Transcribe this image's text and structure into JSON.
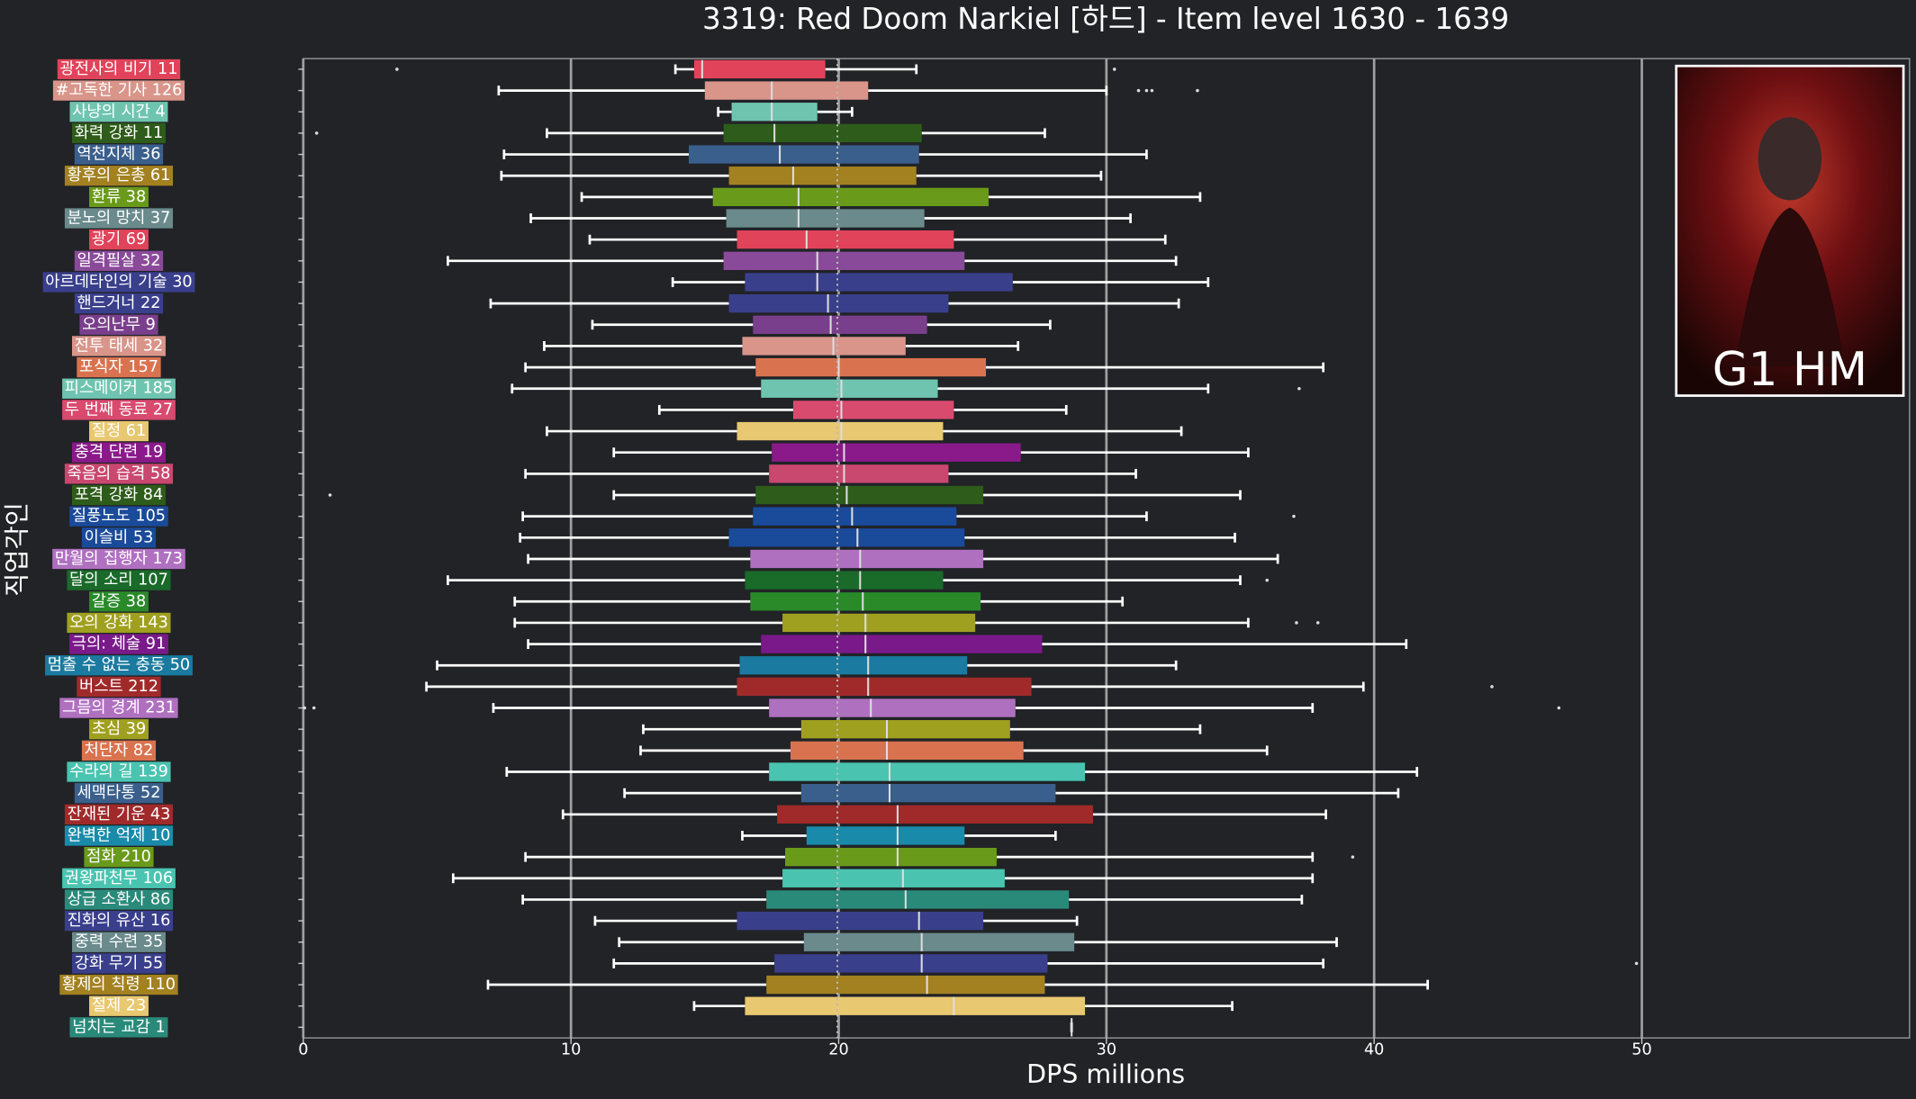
{
  "chart_data": {
    "type": "boxplot",
    "orientation": "horizontal",
    "title": "3319: Red Doom Narkiel [하드] - Item level 1630 - 1639",
    "x_label": "DPS millions",
    "y_label": "직업각인",
    "badge": "G1 HM",
    "xlim": [
      0,
      60
    ],
    "xticks": [
      0,
      10,
      20,
      30,
      40,
      50
    ],
    "grid": true,
    "reference_line": 19.95,
    "categories": [
      "광전사의 비기 11",
      "#고독한 기사 126",
      "사냥의 시간 4",
      "화력 강화 11",
      "역천지체 36",
      "황후의 은총 61",
      "환류 38",
      "분노의 망치 37",
      "광기 69",
      "일격필살 32",
      "아르데타인의 기술 30",
      "핸드거너 22",
      "오의난무 9",
      "전투 태세 32",
      "포식자 157",
      "피스메이커 185",
      "두 번째 동료 27",
      "질정 61",
      "충격 단련 19",
      "죽음의 습격 58",
      "포격 강화 84",
      "질풍노도 105",
      "이슬비 53",
      "만월의 집행자 173",
      "달의 소리 107",
      "갈증 38",
      "오의 강화 143",
      "극의: 체술 91",
      "멈출 수 없는 충동 50",
      "버스트 212",
      "그믐의 경계 231",
      "초심 39",
      "처단자 82",
      "수라의 길 139",
      "세맥타통 52",
      "잔재된 기운 43",
      "완벽한 억제 10",
      "점화 210",
      "권왕파천무 106",
      "상급 소환사 86",
      "진화의 유산 16",
      "중력 수련 35",
      "강화 무기 55",
      "황제의 칙령 110",
      "절제 23",
      "넘치는 교감 1"
    ],
    "colors": [
      "#e0435a",
      "#d9958a",
      "#6fc4b0",
      "#2e5c1a",
      "#3a5f8c",
      "#a38120",
      "#6a9a1a",
      "#6a8a8c",
      "#e0435a",
      "#8a4a9a",
      "#3a3f8c",
      "#3a3f8c",
      "#7a3f8c",
      "#d9958a",
      "#d9734f",
      "#6fc4b0",
      "#d94a6f",
      "#e8c870",
      "#8a1a8a",
      "#c9486f",
      "#2e5c1a",
      "#1a4a9a",
      "#1a4a9a",
      "#b070c0",
      "#1a6a2a",
      "#2a8a2a",
      "#a0a020",
      "#7a1a8a",
      "#1a7aa0",
      "#a02a2a",
      "#b070c0",
      "#a0a020",
      "#d9734f",
      "#4ac4b0",
      "#3a5f8c",
      "#a02a2a",
      "#1a8aaa",
      "#6a9a1a",
      "#4ac4b0",
      "#2a8a7a",
      "#3a3f8c",
      "#6a8a8c",
      "#3a3f8c",
      "#a38120",
      "#e8c870",
      "#2a8a7a"
    ],
    "boxes": [
      {
        "low": 13.9,
        "q1": 14.6,
        "median": 14.9,
        "q3": 19.5,
        "high": 22.9,
        "outliers": [
          3.5,
          30.3
        ]
      },
      {
        "low": 7.3,
        "q1": 15.0,
        "median": 17.5,
        "q3": 21.1,
        "high": 30.0,
        "outliers": [
          31.2,
          31.5,
          31.7,
          33.4
        ]
      },
      {
        "low": 15.5,
        "q1": 16.0,
        "median": 17.5,
        "q3": 19.2,
        "high": 20.5,
        "outliers": []
      },
      {
        "low": 9.1,
        "q1": 15.7,
        "median": 17.6,
        "q3": 23.1,
        "high": 27.7,
        "outliers": [
          0.5
        ]
      },
      {
        "low": 7.5,
        "q1": 14.4,
        "median": 17.8,
        "q3": 23.0,
        "high": 31.5,
        "outliers": []
      },
      {
        "low": 7.4,
        "q1": 15.9,
        "median": 18.3,
        "q3": 22.9,
        "high": 29.8,
        "outliers": []
      },
      {
        "low": 10.4,
        "q1": 15.3,
        "median": 18.5,
        "q3": 25.6,
        "high": 33.5,
        "outliers": []
      },
      {
        "low": 8.5,
        "q1": 15.8,
        "median": 18.5,
        "q3": 23.2,
        "high": 30.9,
        "outliers": []
      },
      {
        "low": 10.7,
        "q1": 16.2,
        "median": 18.8,
        "q3": 24.3,
        "high": 32.2,
        "outliers": []
      },
      {
        "low": 5.4,
        "q1": 15.7,
        "median": 19.2,
        "q3": 24.7,
        "high": 32.6,
        "outliers": []
      },
      {
        "low": 13.8,
        "q1": 16.5,
        "median": 19.2,
        "q3": 26.5,
        "high": 33.8,
        "outliers": []
      },
      {
        "low": 7.0,
        "q1": 15.9,
        "median": 19.6,
        "q3": 24.1,
        "high": 32.7,
        "outliers": []
      },
      {
        "low": 10.8,
        "q1": 16.8,
        "median": 19.7,
        "q3": 23.3,
        "high": 27.9,
        "outliers": []
      },
      {
        "low": 9.0,
        "q1": 16.4,
        "median": 19.8,
        "q3": 22.5,
        "high": 26.7,
        "outliers": []
      },
      {
        "low": 8.3,
        "q1": 16.9,
        "median": 20.0,
        "q3": 25.5,
        "high": 38.1,
        "outliers": []
      },
      {
        "low": 7.8,
        "q1": 17.1,
        "median": 20.1,
        "q3": 23.7,
        "high": 33.8,
        "outliers": [
          37.2
        ]
      },
      {
        "low": 13.3,
        "q1": 18.3,
        "median": 20.1,
        "q3": 24.3,
        "high": 28.5,
        "outliers": []
      },
      {
        "low": 9.1,
        "q1": 16.2,
        "median": 20.1,
        "q3": 23.9,
        "high": 32.8,
        "outliers": []
      },
      {
        "low": 11.6,
        "q1": 17.5,
        "median": 20.2,
        "q3": 26.8,
        "high": 35.3,
        "outliers": []
      },
      {
        "low": 8.3,
        "q1": 17.4,
        "median": 20.2,
        "q3": 24.1,
        "high": 31.1,
        "outliers": []
      },
      {
        "low": 11.6,
        "q1": 16.9,
        "median": 20.3,
        "q3": 25.4,
        "high": 35.0,
        "outliers": [
          1.0
        ]
      },
      {
        "low": 8.2,
        "q1": 16.8,
        "median": 20.5,
        "q3": 24.4,
        "high": 31.5,
        "outliers": [
          37.0
        ]
      },
      {
        "low": 8.1,
        "q1": 15.9,
        "median": 20.7,
        "q3": 24.7,
        "high": 34.8,
        "outliers": []
      },
      {
        "low": 8.4,
        "q1": 16.7,
        "median": 20.8,
        "q3": 25.4,
        "high": 36.4,
        "outliers": []
      },
      {
        "low": 5.4,
        "q1": 16.5,
        "median": 20.8,
        "q3": 23.9,
        "high": 35.0,
        "outliers": [
          36.0
        ]
      },
      {
        "low": 7.9,
        "q1": 16.7,
        "median": 20.9,
        "q3": 25.3,
        "high": 30.6,
        "outliers": []
      },
      {
        "low": 7.9,
        "q1": 17.9,
        "median": 21.0,
        "q3": 25.1,
        "high": 35.3,
        "outliers": [
          37.1,
          37.9
        ]
      },
      {
        "low": 8.4,
        "q1": 17.1,
        "median": 21.0,
        "q3": 27.6,
        "high": 41.2,
        "outliers": []
      },
      {
        "low": 5.0,
        "q1": 16.3,
        "median": 21.1,
        "q3": 24.8,
        "high": 32.6,
        "outliers": []
      },
      {
        "low": 4.6,
        "q1": 16.2,
        "median": 21.1,
        "q3": 27.2,
        "high": 39.6,
        "outliers": [
          44.4
        ]
      },
      {
        "low": 7.1,
        "q1": 17.4,
        "median": 21.2,
        "q3": 26.6,
        "high": 37.7,
        "outliers": [
          0.05,
          0.4,
          46.9
        ]
      },
      {
        "low": 12.7,
        "q1": 18.6,
        "median": 21.8,
        "q3": 26.4,
        "high": 33.5,
        "outliers": []
      },
      {
        "low": 12.6,
        "q1": 18.2,
        "median": 21.8,
        "q3": 26.9,
        "high": 36.0,
        "outliers": []
      },
      {
        "low": 7.6,
        "q1": 17.4,
        "median": 21.9,
        "q3": 29.2,
        "high": 41.6,
        "outliers": []
      },
      {
        "low": 12.0,
        "q1": 18.6,
        "median": 21.9,
        "q3": 28.1,
        "high": 40.9,
        "outliers": []
      },
      {
        "low": 9.7,
        "q1": 17.7,
        "median": 22.2,
        "q3": 29.5,
        "high": 38.2,
        "outliers": []
      },
      {
        "low": 16.4,
        "q1": 18.8,
        "median": 22.2,
        "q3": 24.7,
        "high": 28.1,
        "outliers": []
      },
      {
        "low": 8.3,
        "q1": 18.0,
        "median": 22.2,
        "q3": 25.9,
        "high": 37.7,
        "outliers": [
          39.2
        ]
      },
      {
        "low": 5.6,
        "q1": 17.9,
        "median": 22.4,
        "q3": 26.2,
        "high": 37.7,
        "outliers": []
      },
      {
        "low": 8.2,
        "q1": 17.3,
        "median": 22.5,
        "q3": 28.6,
        "high": 37.3,
        "outliers": []
      },
      {
        "low": 10.9,
        "q1": 16.2,
        "median": 23.0,
        "q3": 25.4,
        "high": 28.9,
        "outliers": []
      },
      {
        "low": 11.8,
        "q1": 18.7,
        "median": 23.1,
        "q3": 28.8,
        "high": 38.6,
        "outliers": []
      },
      {
        "low": 11.6,
        "q1": 17.6,
        "median": 23.1,
        "q3": 27.8,
        "high": 38.1,
        "outliers": [
          49.8
        ]
      },
      {
        "low": 6.9,
        "q1": 17.3,
        "median": 23.3,
        "q3": 27.7,
        "high": 42.0,
        "outliers": []
      },
      {
        "low": 14.6,
        "q1": 16.5,
        "median": 24.3,
        "q3": 29.2,
        "high": 34.7,
        "outliers": []
      },
      {
        "low": 28.7,
        "q1": 28.7,
        "median": 28.7,
        "q3": 28.7,
        "high": 28.7,
        "outliers": []
      }
    ]
  }
}
